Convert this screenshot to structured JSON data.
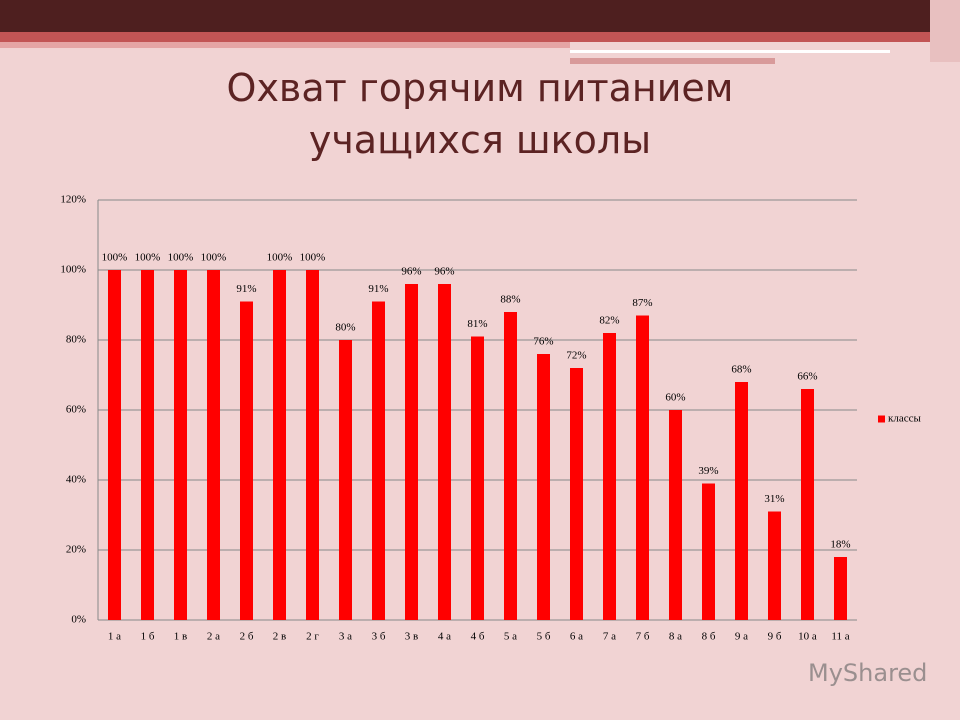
{
  "chart_data": {
    "type": "bar",
    "title": "Охват горячим питанием учащихся школы",
    "categories": [
      "1 а",
      "1 б",
      "1 в",
      "2 а",
      "2 б",
      "2 в",
      "2 г",
      "3 а",
      "3 б",
      "3 в",
      "4 а",
      "4 б",
      "5 а",
      "5 б",
      "6 а",
      "7 а",
      "7 б",
      "8 а",
      "8 б",
      "9 а",
      "9 б",
      "10 а",
      "11 а"
    ],
    "series": [
      {
        "name": "классы",
        "color": "#ff0000",
        "values": [
          100,
          100,
          100,
          100,
          91,
          100,
          100,
          80,
          91,
          96,
          96,
          81,
          88,
          76,
          72,
          82,
          87,
          60,
          39,
          68,
          31,
          66,
          18
        ],
        "value_labels": [
          "100%",
          "100%",
          "100%",
          "100%",
          "91%",
          "100%",
          "100%",
          "80%",
          "91%",
          "96%",
          "96%",
          "81%",
          "88%",
          "76%",
          "72%",
          "82%",
          "87%",
          "60%",
          "39%",
          "68%",
          "31%",
          "66%",
          "18%"
        ]
      }
    ],
    "ylim": [
      0,
      120
    ],
    "yticks": [
      {
        "value": 0,
        "label": "0%"
      },
      {
        "value": 20,
        "label": "20%"
      },
      {
        "value": 40,
        "label": "40%"
      },
      {
        "value": 60,
        "label": "60%"
      },
      {
        "value": 80,
        "label": "80%"
      },
      {
        "value": 100,
        "label": "100%"
      },
      {
        "value": 120,
        "label": "120%"
      }
    ],
    "grid": true,
    "legend": "right"
  },
  "watermark": "MyShared"
}
